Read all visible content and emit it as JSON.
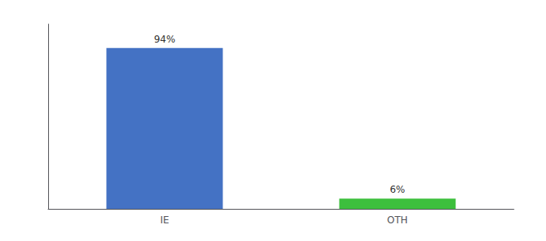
{
  "chart_data": {
    "type": "bar",
    "categories": [
      "IE",
      "OTH"
    ],
    "values": [
      94,
      6
    ],
    "value_labels": [
      "94%",
      "6%"
    ],
    "colors": [
      "#4472c4",
      "#3dbf3d"
    ],
    "ylim": [
      0,
      108
    ],
    "data_labels": true,
    "tick_labels": "x",
    "grid": false
  }
}
